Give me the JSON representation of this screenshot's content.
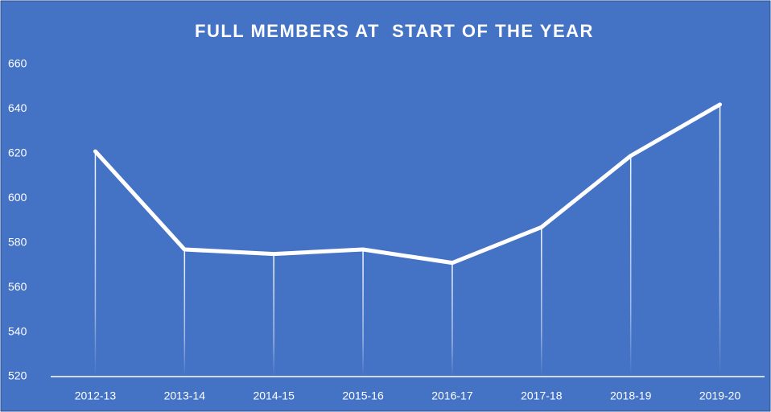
{
  "chart_data": {
    "type": "line",
    "title": "FULL MEMBERS AT  START OF THE YEAR",
    "categories": [
      "2012-13",
      "2013-14",
      "2014-15",
      "2015-16",
      "2016-17",
      "2017-18",
      "2018-19",
      "2019-20"
    ],
    "values": [
      621,
      577,
      575,
      577,
      571,
      587,
      619,
      642
    ],
    "color": "#ffffff",
    "background": "#4472c4",
    "ylim": [
      520,
      660
    ],
    "yticks": [
      520,
      540,
      560,
      580,
      600,
      620,
      640,
      660
    ],
    "grid": false,
    "drop_lines": true
  }
}
